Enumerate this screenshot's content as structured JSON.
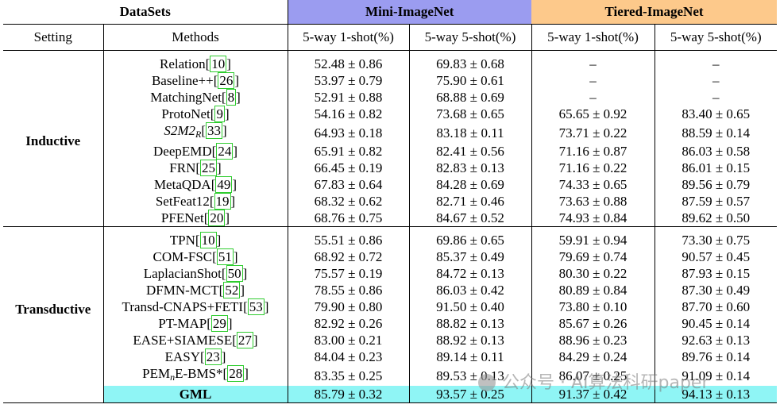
{
  "header": {
    "datasets": "DataSets",
    "mini": "Mini-ImageNet",
    "tiered": "Tiered-ImageNet",
    "setting": "Setting",
    "methods": "Methods",
    "cols": [
      "5-way 1-shot(%)",
      "5-way 5-shot(%)",
      "5-way 1-shot(%)",
      "5-way 5-shot(%)"
    ]
  },
  "groups": [
    {
      "setting": "Inductive",
      "rows": [
        {
          "method": "Relation",
          "ref": "10",
          "v": [
            "52.48 ± 0.86",
            "69.83 ± 0.68",
            "–",
            "–"
          ]
        },
        {
          "method": "Baseline++",
          "ref": "26",
          "v": [
            "53.97 ± 0.79",
            "75.90 ± 0.61",
            "–",
            "–"
          ]
        },
        {
          "method": "MatchingNet",
          "ref": "8",
          "v": [
            "52.91 ± 0.88",
            "68.88 ± 0.69",
            "–",
            "–"
          ]
        },
        {
          "method": "ProtoNet",
          "ref": "9",
          "v": [
            "54.16 ± 0.82",
            "73.68 ± 0.65",
            "65.65 ± 0.92",
            "83.40 ± 0.65"
          ]
        },
        {
          "method": "S2M2",
          "sub": "R",
          "ref": "33",
          "v": [
            "64.93 ± 0.18",
            "83.18 ± 0.11",
            "73.71 ± 0.22",
            "88.59 ± 0.14"
          ]
        },
        {
          "method": "DeepEMD",
          "ref": "24",
          "v": [
            "65.91 ± 0.82",
            "82.41 ± 0.56",
            "71.16 ± 0.87",
            "86.03 ± 0.58"
          ]
        },
        {
          "method": "FRN",
          "ref": "25",
          "v": [
            "66.45 ± 0.19",
            "82.83 ± 0.13",
            "71.16 ± 0.22",
            "86.01 ± 0.15"
          ]
        },
        {
          "method": "MetaQDA",
          "ref": "49",
          "v": [
            "67.83 ± 0.64",
            "84.28 ± 0.69",
            "74.33 ± 0.65",
            "89.56 ± 0.79"
          ]
        },
        {
          "method": "SetFeat12",
          "ref": "19",
          "v": [
            "68.32 ± 0.62",
            "82.71 ± 0.46",
            "73.63 ± 0.88",
            "87.59 ± 0.57"
          ]
        },
        {
          "method": "PFENet",
          "ref": "20",
          "v": [
            "68.76 ± 0.75",
            "84.67 ± 0.52",
            "74.93 ± 0.84",
            "89.62 ± 0.50"
          ]
        }
      ]
    },
    {
      "setting": "Transductive",
      "rows": [
        {
          "method": "TPN",
          "ref": "10",
          "v": [
            "55.51 ± 0.86",
            "69.86 ± 0.65",
            "59.91 ± 0.94",
            "73.30 ± 0.75"
          ]
        },
        {
          "method": "COM-FSC",
          "ref": "51",
          "v": [
            "68.92 ± 0.72",
            "85.37 ± 0.49",
            "79.69 ± 0.74",
            "90.57 ± 0.45"
          ]
        },
        {
          "method": "LaplacianShot",
          "ref": "50",
          "v": [
            "75.57 ± 0.19",
            "84.72 ± 0.13",
            "80.30 ± 0.22",
            "87.93 ± 0.15"
          ]
        },
        {
          "method": "DFMN-MCT",
          "ref": "52",
          "v": [
            "78.55 ± 0.86",
            "86.03 ± 0.42",
            "80.89 ± 0.84",
            "87.30 ± 0.49"
          ]
        },
        {
          "method": "Transd-CNAPS+FETI",
          "ref": "53",
          "v": [
            "79.90 ± 0.80",
            "91.50 ± 0.40",
            "73.80 ± 0.10",
            "87.70 ± 0.60"
          ]
        },
        {
          "method": "PT-MAP",
          "ref": "29",
          "v": [
            "82.92 ± 0.26",
            "88.82 ± 0.13",
            "85.67 ± 0.26",
            "90.45 ± 0.14"
          ]
        },
        {
          "method": "EASE+SIAMESE",
          "ref": "27",
          "v": [
            "83.00 ± 0.21",
            "88.92 ± 0.13",
            "88.96 ± 0.23",
            "92.63 ± 0.13"
          ]
        },
        {
          "method": "EASY",
          "ref": "23",
          "v": [
            "84.04 ± 0.23",
            "89.14 ± 0.11",
            "84.29 ± 0.24",
            "89.76 ± 0.14"
          ]
        },
        {
          "method": "PEM",
          "sub": "n",
          "suffix": "E-BMS*",
          "ref": "28",
          "v": [
            "83.35 ± 0.25",
            "89.53 ± 0.13",
            "86.07 ± 0.25",
            "91.09 ± 0.14"
          ]
        }
      ]
    }
  ],
  "gml": {
    "method": "GML",
    "v": [
      "85.79 ± 0.32",
      "93.57 ± 0.25",
      "91.37 ± 0.42",
      "94.13 ± 0.13"
    ]
  },
  "watermark": "公众号 · AI算法科研paper"
}
